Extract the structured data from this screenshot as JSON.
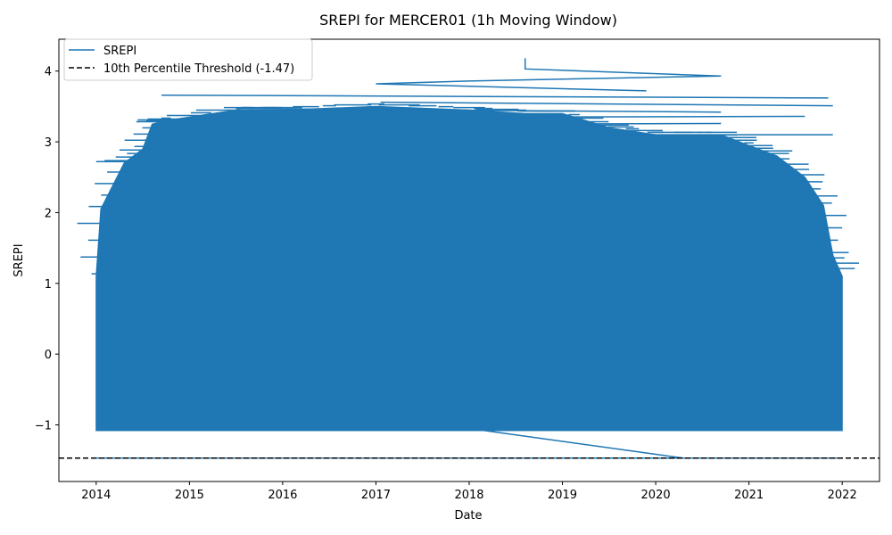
{
  "chart_data": {
    "type": "line",
    "title": "SREPI for MERCER01 (1h Moving Window)",
    "xlabel": "Date",
    "ylabel": "SREPI",
    "xlim": [
      2013.6,
      2022.4
    ],
    "ylim": [
      -1.8,
      4.45
    ],
    "x_ticks": [
      2014,
      2015,
      2016,
      2017,
      2018,
      2019,
      2020,
      2021,
      2022
    ],
    "y_ticks": [
      -1,
      0,
      1,
      2,
      3,
      4
    ],
    "legend_position": "upper left",
    "grid": false,
    "series": [
      {
        "name": "SREPI",
        "style": "solid",
        "color": "#1f77b4",
        "band": {
          "x_start": 2014.0,
          "x_end": 2022.0,
          "y_min": -1.08,
          "upper_envelope": [
            [
              2014.0,
              1.1
            ],
            [
              2014.05,
              2.05
            ],
            [
              2014.3,
              2.7
            ],
            [
              2014.5,
              2.9
            ],
            [
              2014.6,
              3.25
            ],
            [
              2014.75,
              3.3
            ],
            [
              2015.5,
              3.45
            ],
            [
              2016.0,
              3.45
            ],
            [
              2017.0,
              3.5
            ],
            [
              2018.0,
              3.45
            ],
            [
              2018.6,
              3.4
            ],
            [
              2019.0,
              3.4
            ],
            [
              2019.5,
              3.2
            ],
            [
              2020.0,
              3.1
            ],
            [
              2020.7,
              3.1
            ],
            [
              2021.0,
              2.95
            ],
            [
              2021.3,
              2.8
            ],
            [
              2021.6,
              2.5
            ],
            [
              2021.8,
              2.1
            ],
            [
              2021.9,
              1.4
            ],
            [
              2022.0,
              1.1
            ]
          ]
        },
        "spikes": [
          {
            "x": [
              2018.6,
              2018.6,
              2020.7
            ],
            "y": [
              4.18,
              4.03,
              3.93
            ]
          },
          {
            "x": [
              2020.7,
              2018.0,
              2017.0,
              2019.9
            ],
            "y": [
              3.93,
              3.86,
              3.82,
              3.72
            ]
          },
          {
            "x": [
              2014.7,
              2021.85
            ],
            "y": [
              3.66,
              3.62
            ]
          },
          {
            "x": [
              2017.05,
              2021.9
            ],
            "y": [
              3.56,
              3.51
            ]
          },
          {
            "x": [
              2015.5,
              2020.7
            ],
            "y": [
              3.47,
              3.42
            ]
          },
          {
            "x": [
              2020.7,
              2018.3,
              2018.6,
              2021.6
            ],
            "y": [
              3.26,
              3.25,
              3.35,
              3.36
            ]
          },
          {
            "x": [
              2017.6,
              2021.9
            ],
            "y": [
              3.1,
              3.1
            ]
          },
          {
            "x": [
              2016.0,
              2016.75
            ],
            "y": [
              3.0,
              2.98
            ]
          },
          {
            "x": [
              2014.0,
              2015.3
            ],
            "y": [
              2.72,
              2.72
            ]
          },
          {
            "x": [
              2018.0,
              2020.3
            ],
            "y": [
              -1.05,
              -1.47
            ]
          }
        ],
        "low_line": {
          "x": [
            2014.0,
            2022.0
          ],
          "y": -1.47
        }
      },
      {
        "name": "10th Percentile Threshold (-1.47)",
        "style": "dashed",
        "color": "#000000",
        "y": -1.47
      }
    ]
  }
}
